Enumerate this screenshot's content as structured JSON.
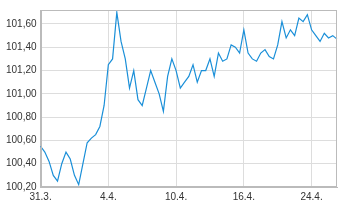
{
  "chart_data": {
    "type": "line",
    "categories": [
      "31.3.",
      null,
      null,
      null,
      null,
      null,
      null,
      null,
      null,
      null,
      null,
      null,
      null,
      null,
      null,
      null,
      "4.4.",
      null,
      null,
      null,
      null,
      null,
      null,
      null,
      null,
      null,
      null,
      null,
      null,
      null,
      null,
      null,
      "10.4.",
      null,
      null,
      null,
      null,
      null,
      null,
      null,
      null,
      null,
      null,
      null,
      null,
      null,
      null,
      null,
      "16.4.",
      null,
      null,
      null,
      null,
      null,
      null,
      null,
      null,
      null,
      null,
      null,
      null,
      null,
      null,
      null,
      "24.4.",
      null,
      null,
      null,
      null,
      null,
      null
    ],
    "values": [
      100.55,
      100.5,
      100.42,
      100.3,
      100.25,
      100.4,
      100.5,
      100.44,
      100.3,
      100.22,
      100.4,
      100.58,
      100.62,
      100.65,
      100.72,
      100.9,
      101.25,
      101.3,
      101.7,
      101.45,
      101.3,
      101.05,
      101.2,
      100.95,
      100.9,
      101.05,
      101.2,
      101.1,
      101.0,
      100.85,
      101.15,
      101.3,
      101.2,
      101.05,
      101.1,
      101.15,
      101.25,
      101.1,
      101.2,
      101.2,
      101.3,
      101.15,
      101.35,
      101.28,
      101.3,
      101.42,
      101.4,
      101.35,
      101.55,
      101.35,
      101.3,
      101.28,
      101.35,
      101.38,
      101.32,
      101.3,
      101.42,
      101.62,
      101.48,
      101.55,
      101.5,
      101.65,
      101.62,
      101.68,
      101.55,
      101.5,
      101.45,
      101.52,
      101.48,
      101.5,
      101.47
    ],
    "color": "#1a8fd8",
    "ylim": [
      100.2,
      101.72
    ],
    "yticks": [
      {
        "value": 100.2,
        "label": "100,20"
      },
      {
        "value": 100.4,
        "label": "100,40"
      },
      {
        "value": 100.6,
        "label": "100,60"
      },
      {
        "value": 100.8,
        "label": "100,80"
      },
      {
        "value": 101.0,
        "label": "101,00"
      },
      {
        "value": 101.2,
        "label": "101,20"
      },
      {
        "value": 101.4,
        "label": "101,40"
      },
      {
        "value": 101.6,
        "label": "101,60"
      }
    ],
    "grid": true
  }
}
